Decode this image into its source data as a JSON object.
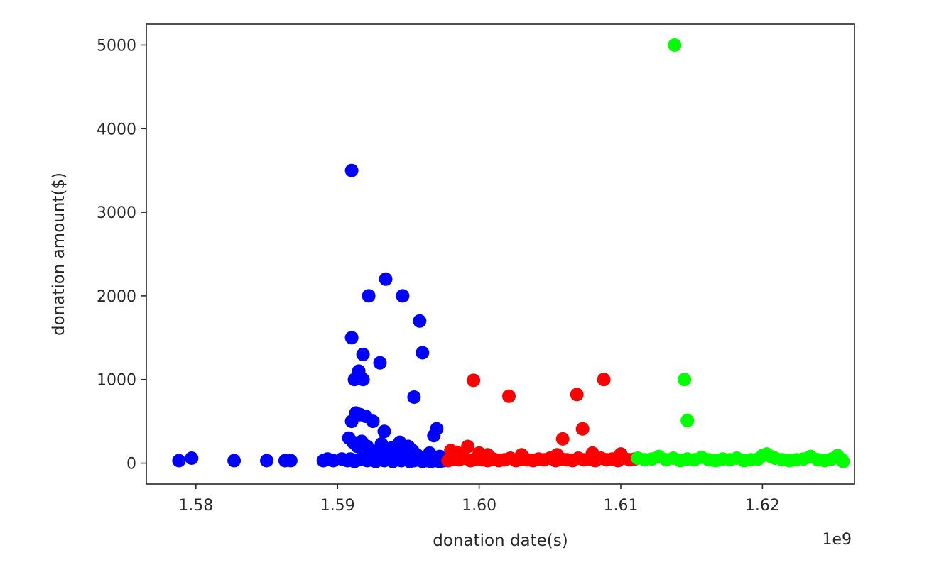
{
  "chart_data": {
    "type": "scatter",
    "title": "",
    "xlabel": "donation date(s)",
    "ylabel": "donation amount($)",
    "x_offset_label": "1e9",
    "x_unit_multiplier": 1000000000,
    "xlim": [
      1.5765,
      1.6265
    ],
    "ylim": [
      -250,
      5250
    ],
    "xticks": [
      1.58,
      1.59,
      1.6,
      1.61,
      1.62
    ],
    "xtick_labels": [
      "1.58",
      "1.59",
      "1.60",
      "1.61",
      "1.62"
    ],
    "yticks": [
      0,
      1000,
      2000,
      3000,
      4000,
      5000
    ],
    "ytick_labels": [
      "0",
      "1000",
      "2000",
      "3000",
      "4000",
      "5000"
    ],
    "grid": false,
    "series": [
      {
        "color": "#0000ff",
        "points": [
          [
            1.5788,
            30
          ],
          [
            1.5797,
            60
          ],
          [
            1.5827,
            30
          ],
          [
            1.585,
            30
          ],
          [
            1.5863,
            30
          ],
          [
            1.5867,
            30
          ],
          [
            1.589,
            30
          ],
          [
            1.5893,
            50
          ],
          [
            1.5897,
            30
          ],
          [
            1.5903,
            50
          ],
          [
            1.5907,
            30
          ],
          [
            1.591,
            3500
          ],
          [
            1.591,
            1500
          ],
          [
            1.5912,
            1000
          ],
          [
            1.5915,
            1100
          ],
          [
            1.5918,
            1000
          ],
          [
            1.5918,
            1300
          ],
          [
            1.5922,
            2000
          ],
          [
            1.593,
            1200
          ],
          [
            1.5934,
            2200
          ],
          [
            1.5946,
            2000
          ],
          [
            1.5958,
            1700
          ],
          [
            1.596,
            1320
          ],
          [
            1.5954,
            790
          ],
          [
            1.591,
            500
          ],
          [
            1.5913,
            600
          ],
          [
            1.5916,
            580
          ],
          [
            1.592,
            560
          ],
          [
            1.5925,
            500
          ],
          [
            1.5933,
            380
          ],
          [
            1.597,
            410
          ],
          [
            1.5968,
            330
          ],
          [
            1.5908,
            300
          ],
          [
            1.5911,
            250
          ],
          [
            1.5914,
            200
          ],
          [
            1.5917,
            260
          ],
          [
            1.5921,
            200
          ],
          [
            1.5924,
            150
          ],
          [
            1.5927,
            120
          ],
          [
            1.5931,
            230
          ],
          [
            1.5935,
            100
          ],
          [
            1.5938,
            180
          ],
          [
            1.5941,
            150
          ],
          [
            1.5944,
            250
          ],
          [
            1.5947,
            100
          ],
          [
            1.595,
            200
          ],
          [
            1.5953,
            150
          ],
          [
            1.5956,
            100
          ],
          [
            1.5959,
            60
          ],
          [
            1.5962,
            40
          ],
          [
            1.5965,
            120
          ],
          [
            1.5972,
            80
          ],
          [
            1.5909,
            50
          ],
          [
            1.5912,
            20
          ],
          [
            1.5915,
            40
          ],
          [
            1.5918,
            60
          ],
          [
            1.5921,
            30
          ],
          [
            1.5924,
            50
          ],
          [
            1.5927,
            20
          ],
          [
            1.593,
            40
          ],
          [
            1.5933,
            30
          ],
          [
            1.5936,
            50
          ],
          [
            1.5939,
            20
          ],
          [
            1.5942,
            40
          ],
          [
            1.5945,
            30
          ],
          [
            1.5948,
            50
          ],
          [
            1.5951,
            20
          ],
          [
            1.5954,
            30
          ],
          [
            1.5957,
            40
          ],
          [
            1.596,
            20
          ],
          [
            1.5963,
            30
          ],
          [
            1.5966,
            20
          ],
          [
            1.5969,
            30
          ],
          [
            1.5972,
            20
          ],
          [
            1.5975,
            30
          ]
        ]
      },
      {
        "color": "#ff0000",
        "points": [
          [
            1.5996,
            990
          ],
          [
            1.6021,
            800
          ],
          [
            1.6059,
            290
          ],
          [
            1.6069,
            820
          ],
          [
            1.6073,
            410
          ],
          [
            1.6088,
            1000
          ],
          [
            1.598,
            150
          ],
          [
            1.5984,
            130
          ],
          [
            1.5992,
            200
          ],
          [
            1.6,
            120
          ],
          [
            1.6006,
            100
          ],
          [
            1.603,
            100
          ],
          [
            1.6055,
            100
          ],
          [
            1.608,
            120
          ],
          [
            1.61,
            110
          ],
          [
            1.5978,
            30
          ],
          [
            1.5982,
            50
          ],
          [
            1.5986,
            40
          ],
          [
            1.599,
            60
          ],
          [
            1.5994,
            30
          ],
          [
            1.5998,
            50
          ],
          [
            1.6002,
            40
          ],
          [
            1.6006,
            30
          ],
          [
            1.601,
            50
          ],
          [
            1.6014,
            30
          ],
          [
            1.6018,
            40
          ],
          [
            1.6022,
            60
          ],
          [
            1.6026,
            30
          ],
          [
            1.603,
            50
          ],
          [
            1.6034,
            40
          ],
          [
            1.6038,
            30
          ],
          [
            1.6042,
            50
          ],
          [
            1.6046,
            40
          ],
          [
            1.605,
            60
          ],
          [
            1.6054,
            30
          ],
          [
            1.6058,
            50
          ],
          [
            1.6062,
            40
          ],
          [
            1.6066,
            30
          ],
          [
            1.607,
            60
          ],
          [
            1.6074,
            40
          ],
          [
            1.6078,
            50
          ],
          [
            1.6082,
            30
          ],
          [
            1.6086,
            60
          ],
          [
            1.609,
            40
          ],
          [
            1.6094,
            50
          ],
          [
            1.6098,
            30
          ],
          [
            1.6102,
            60
          ],
          [
            1.6106,
            40
          ],
          [
            1.611,
            50
          ]
        ]
      },
      {
        "color": "#00ff00",
        "points": [
          [
            1.6138,
            5000
          ],
          [
            1.6145,
            1000
          ],
          [
            1.6147,
            510
          ],
          [
            1.6112,
            60
          ],
          [
            1.6117,
            40
          ],
          [
            1.6122,
            50
          ],
          [
            1.6127,
            80
          ],
          [
            1.6132,
            40
          ],
          [
            1.6137,
            60
          ],
          [
            1.6142,
            30
          ],
          [
            1.6147,
            50
          ],
          [
            1.6152,
            40
          ],
          [
            1.6157,
            70
          ],
          [
            1.6162,
            40
          ],
          [
            1.6167,
            30
          ],
          [
            1.6172,
            50
          ],
          [
            1.6177,
            40
          ],
          [
            1.6182,
            60
          ],
          [
            1.6187,
            30
          ],
          [
            1.6192,
            40
          ],
          [
            1.6197,
            50
          ],
          [
            1.62,
            90
          ],
          [
            1.6203,
            110
          ],
          [
            1.6206,
            80
          ],
          [
            1.6209,
            60
          ],
          [
            1.6214,
            40
          ],
          [
            1.6219,
            30
          ],
          [
            1.6224,
            40
          ],
          [
            1.6229,
            50
          ],
          [
            1.6234,
            80
          ],
          [
            1.6239,
            40
          ],
          [
            1.6244,
            30
          ],
          [
            1.6249,
            50
          ],
          [
            1.6253,
            90
          ],
          [
            1.6256,
            40
          ],
          [
            1.6257,
            20
          ]
        ]
      }
    ]
  }
}
